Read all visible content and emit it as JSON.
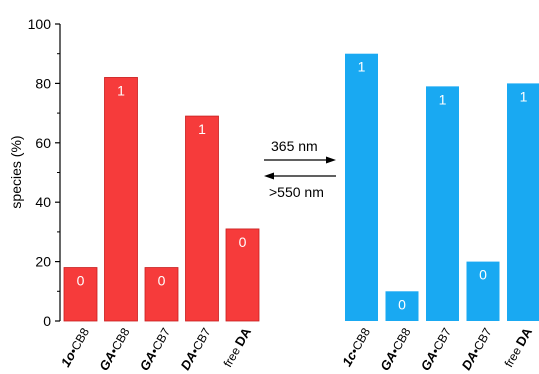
{
  "chart_data": {
    "type": "bar",
    "ylabel": "species (%)",
    "ylim": [
      0,
      100
    ],
    "yticks": [
      0,
      20,
      40,
      60,
      80,
      100
    ],
    "grid": false,
    "panels": [
      {
        "name": "",
        "color": "#f63b3b",
        "categories": [
          {
            "bold": "1o",
            "normal": "•CB8"
          },
          {
            "bold": "GA",
            "normal": "•CB8"
          },
          {
            "bold": "GA",
            "normal": "•CB7"
          },
          {
            "bold": "DA",
            "normal": "•CB7"
          },
          {
            "bold": "DA",
            "normal": "free ",
            "bold_last": true
          }
        ],
        "values": [
          18,
          82,
          18,
          69,
          31
        ],
        "labels": [
          "0",
          "1",
          "0",
          "1",
          "0"
        ]
      },
      {
        "name": "",
        "color": "#19a9f2",
        "categories": [
          {
            "bold": "1c",
            "normal": "•CB8"
          },
          {
            "bold": "GA",
            "normal": "•CB8"
          },
          {
            "bold": "GA",
            "normal": "•CB7"
          },
          {
            "bold": "DA",
            "normal": "•CB7"
          },
          {
            "bold": "DA",
            "normal": "free ",
            "bold_last": true
          }
        ],
        "values": [
          90,
          10,
          79,
          20,
          80
        ],
        "labels": [
          "1",
          "0",
          "1",
          "0",
          "1"
        ]
      }
    ],
    "annotations": {
      "forward": "365 nm",
      "backward": ">550 nm"
    }
  }
}
